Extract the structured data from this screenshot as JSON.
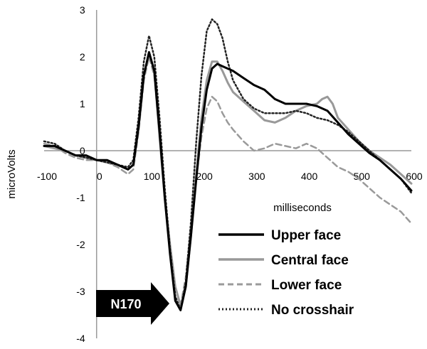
{
  "chart_data": {
    "type": "line",
    "title": "",
    "xlabel": "milliseconds",
    "ylabel": "microVolts",
    "xlim": [
      -100,
      600
    ],
    "ylim": [
      -4,
      3
    ],
    "x_ticks": [
      "-100",
      "0",
      "100",
      "200",
      "300",
      "400",
      "500",
      "600"
    ],
    "y_ticks": [
      "3",
      "2",
      "1",
      "0",
      "-1",
      "-2",
      "-3",
      "-4"
    ],
    "grid": false,
    "legend_position": "bottom-right",
    "series": [
      {
        "name": "Upper face",
        "color": "#000000",
        "style": "solid",
        "x": [
          -100,
          -80,
          -60,
          -40,
          -20,
          0,
          20,
          40,
          60,
          70,
          80,
          90,
          100,
          110,
          120,
          130,
          140,
          150,
          160,
          170,
          180,
          190,
          200,
          210,
          220,
          230,
          240,
          250,
          260,
          280,
          300,
          320,
          340,
          360,
          380,
          400,
          420,
          440,
          460,
          480,
          500,
          520,
          540,
          560,
          580,
          600
        ],
        "y": [
          0.1,
          0.1,
          0.0,
          -0.1,
          -0.1,
          -0.2,
          -0.2,
          -0.3,
          -0.4,
          -0.3,
          0.5,
          1.6,
          2.1,
          1.7,
          0.4,
          -1.0,
          -2.2,
          -3.2,
          -3.4,
          -2.9,
          -1.8,
          -0.6,
          0.5,
          1.3,
          1.75,
          1.85,
          1.8,
          1.75,
          1.7,
          1.55,
          1.4,
          1.3,
          1.1,
          1.0,
          1.0,
          1.0,
          0.95,
          0.85,
          0.6,
          0.35,
          0.15,
          -0.05,
          -0.2,
          -0.4,
          -0.6,
          -0.85
        ]
      },
      {
        "name": "Central face",
        "color": "#999999",
        "style": "solid",
        "x": [
          -100,
          -80,
          -60,
          -40,
          -20,
          0,
          20,
          40,
          60,
          70,
          80,
          90,
          100,
          110,
          120,
          130,
          140,
          150,
          160,
          170,
          180,
          190,
          200,
          210,
          220,
          230,
          240,
          250,
          260,
          280,
          300,
          320,
          340,
          360,
          380,
          400,
          420,
          430,
          440,
          450,
          460,
          480,
          500,
          520,
          540,
          560,
          580,
          600
        ],
        "y": [
          0.1,
          0.05,
          0.0,
          -0.1,
          -0.15,
          -0.2,
          -0.25,
          -0.3,
          -0.4,
          -0.3,
          0.5,
          1.6,
          2.1,
          1.7,
          0.3,
          -1.0,
          -2.0,
          -2.9,
          -3.3,
          -2.9,
          -1.8,
          -0.5,
          0.7,
          1.5,
          1.9,
          1.9,
          1.7,
          1.45,
          1.25,
          1.05,
          0.85,
          0.65,
          0.6,
          0.7,
          0.85,
          0.95,
          1.0,
          1.1,
          1.15,
          1.0,
          0.7,
          0.45,
          0.2,
          0.0,
          -0.15,
          -0.3,
          -0.5,
          -0.7
        ]
      },
      {
        "name": "Lower face",
        "color": "#9a9a9a",
        "style": "dashed",
        "x": [
          -100,
          -80,
          -60,
          -40,
          -20,
          0,
          20,
          40,
          60,
          70,
          80,
          90,
          100,
          110,
          120,
          130,
          140,
          150,
          160,
          170,
          180,
          190,
          200,
          210,
          220,
          230,
          240,
          250,
          260,
          280,
          300,
          320,
          340,
          360,
          380,
          400,
          420,
          440,
          460,
          480,
          500,
          520,
          540,
          560,
          580,
          600
        ],
        "y": [
          0.15,
          0.1,
          -0.05,
          -0.15,
          -0.2,
          -0.2,
          -0.25,
          -0.35,
          -0.5,
          -0.4,
          0.4,
          1.5,
          2.0,
          1.6,
          0.3,
          -1.0,
          -2.1,
          -2.9,
          -3.3,
          -2.7,
          -1.6,
          -0.6,
          0.3,
          0.9,
          1.15,
          1.05,
          0.8,
          0.6,
          0.45,
          0.2,
          0.0,
          0.05,
          0.15,
          0.1,
          0.05,
          0.15,
          0.05,
          -0.15,
          -0.35,
          -0.45,
          -0.6,
          -0.8,
          -1.0,
          -1.15,
          -1.3,
          -1.55
        ]
      },
      {
        "name": "No crosshair",
        "color": "#222222",
        "style": "dotted",
        "x": [
          -100,
          -80,
          -60,
          -40,
          -20,
          0,
          20,
          40,
          60,
          70,
          80,
          90,
          100,
          110,
          120,
          130,
          140,
          150,
          160,
          170,
          180,
          190,
          200,
          210,
          220,
          230,
          240,
          250,
          260,
          280,
          300,
          320,
          340,
          360,
          380,
          400,
          420,
          440,
          460,
          480,
          500,
          520,
          540,
          560,
          580,
          600
        ],
        "y": [
          0.2,
          0.15,
          0.0,
          -0.1,
          -0.15,
          -0.2,
          -0.25,
          -0.3,
          -0.35,
          -0.2,
          0.7,
          1.9,
          2.45,
          2.0,
          0.7,
          -0.8,
          -2.1,
          -3.1,
          -3.4,
          -2.8,
          -1.5,
          0.2,
          1.6,
          2.55,
          2.8,
          2.7,
          2.4,
          1.9,
          1.5,
          1.1,
          0.9,
          0.8,
          0.8,
          0.8,
          0.85,
          0.8,
          0.7,
          0.65,
          0.55,
          0.4,
          0.2,
          0.0,
          -0.2,
          -0.4,
          -0.6,
          -0.9
        ]
      }
    ],
    "annotations": [
      {
        "text": "N170",
        "x": 160,
        "y": -3.3
      }
    ]
  }
}
